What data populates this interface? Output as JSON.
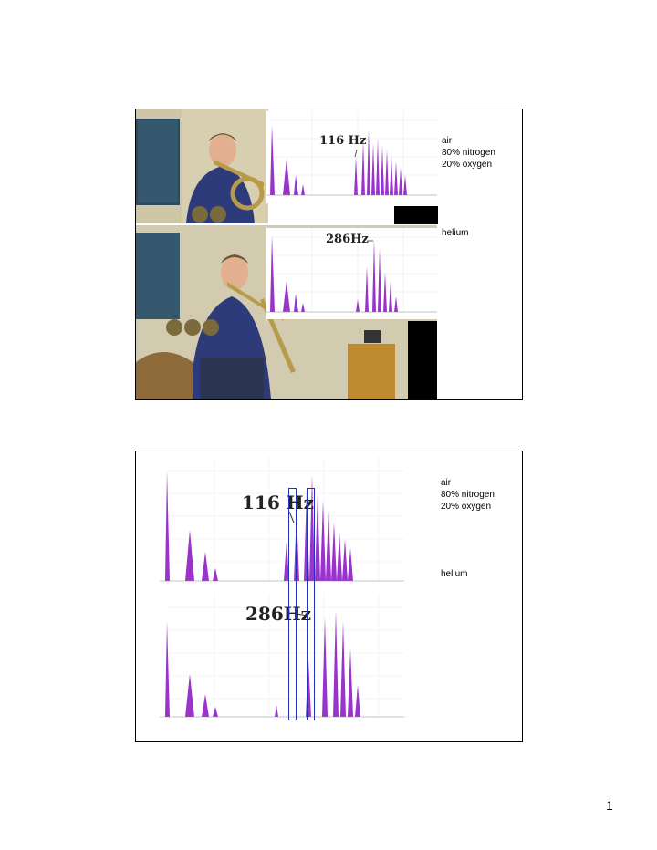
{
  "slide1": {
    "labels": {
      "air": "air\n80% nitrogen\n20% oxygen",
      "helium": "helium"
    },
    "annotations": {
      "air_freq": "116 Hz",
      "helium_freq": "286Hz"
    },
    "colors": {
      "spectrum": "#9933cc",
      "box": "#2233bb"
    }
  },
  "slide2": {
    "labels": {
      "air": "air\n80% nitrogen\n20% oxygen",
      "helium": "helium"
    },
    "annotations": {
      "air_freq": "116 Hz",
      "helium_freq": "286Hz"
    }
  },
  "page": {
    "number": "1"
  }
}
